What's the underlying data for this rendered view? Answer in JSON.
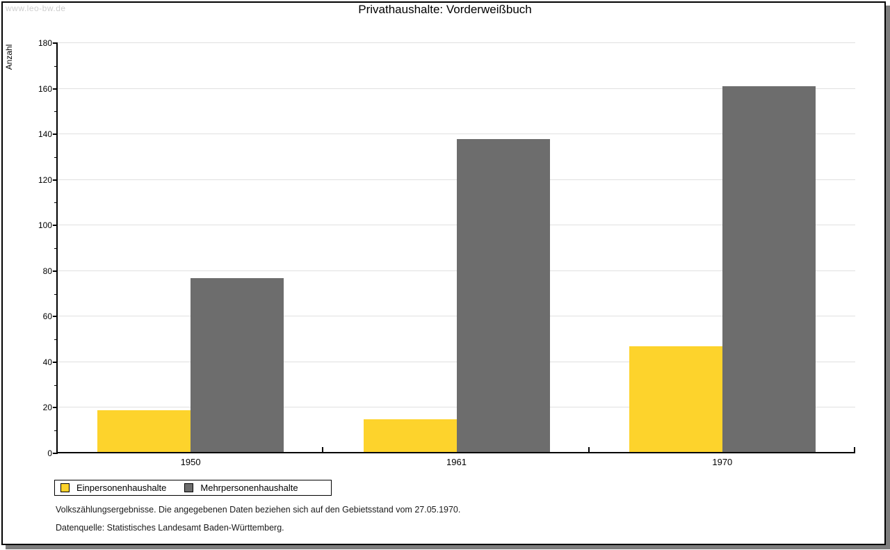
{
  "watermark": "www.leo-bw.de",
  "title": "Privathaushalte: Vorderweißbuch",
  "footer": {
    "note": "Volkszählungsergebnisse. Die angegebenen Daten beziehen sich auf den Gebietsstand vom 27.05.1970.",
    "source": "Datenquelle: Statistisches Landesamt Baden-Württemberg."
  },
  "colors": {
    "series_einpersonen": "#fdd32c",
    "series_mehrpersonen": "#6d6d6d",
    "gridline": "#e0e0e0",
    "axis": "#000000",
    "watermark": "#cdcdcd",
    "frame_shadow": "#7d7d7d"
  },
  "chart_data": {
    "type": "bar",
    "title": "Privathaushalte: Vorderweißbuch",
    "categories": [
      "1950",
      "1961",
      "1970"
    ],
    "series": [
      {
        "name": "Einpersonenhaushalte",
        "color": "#fdd32c",
        "values": [
          19,
          15,
          47
        ]
      },
      {
        "name": "Mehrpersonenhaushalte",
        "color": "#6d6d6d",
        "values": [
          77,
          138,
          161
        ]
      }
    ],
    "xlabel": "",
    "ylabel": "Anzahl",
    "ylim": [
      0,
      180
    ],
    "ytick_step": 20,
    "minor_ytick_step": 10,
    "ytick_labels": [
      "0",
      "20",
      "40",
      "60",
      "80",
      "100",
      "120",
      "140",
      "160",
      "180"
    ],
    "grid": true,
    "legend_position": "bottom-left"
  }
}
